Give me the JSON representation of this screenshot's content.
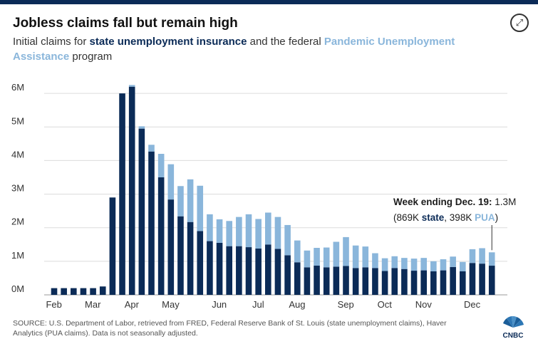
{
  "header": {
    "title": "Jobless claims fall but remain high",
    "subtitle_pre": "Initial claims for ",
    "subtitle_state": "state unemployment insurance",
    "subtitle_mid": " and the federal ",
    "subtitle_pua": "Pandemic Unemployment Assistance",
    "subtitle_post": " program"
  },
  "icons": {
    "expand": "expand-icon",
    "logo": "cnbc-peacock-logo"
  },
  "logo_text": "CNBC",
  "annotation": {
    "bold": "Week ending Dec. 19:",
    "value": " 1.3M",
    "open": "(869K ",
    "state": "state",
    "comma": ", 398K ",
    "pua": "PUA",
    "close": ")"
  },
  "source": "SOURCE: U.S. Department of Labor, retrieved from FRED, Federal Reserve Bank of St. Louis (state unemployment claims), Haver Analytics (PUA claims). Data is not seasonally adjusted.",
  "colors": {
    "state": "#0b2b57",
    "pua": "#8ab6db",
    "grid": "#dcdcdc",
    "topbar": "#0b2b57"
  },
  "chart_data": {
    "type": "bar",
    "stacked": true,
    "title": "Jobless claims fall but remain high",
    "ylabel": "",
    "ylim": [
      0,
      6.3
    ],
    "yticks": [
      0,
      1,
      2,
      3,
      4,
      5,
      6
    ],
    "ytick_labels": [
      "0M",
      "1M",
      "2M",
      "3M",
      "4M",
      "5M",
      "6M"
    ],
    "xtick_labels": [
      "Feb",
      "Mar",
      "Apr",
      "May",
      "Jun",
      "Jul",
      "Aug",
      "Sep",
      "Oct",
      "Nov",
      "Dec"
    ],
    "xtick_positions": [
      1,
      5,
      9,
      13,
      18,
      22,
      26,
      31,
      35,
      39,
      44
    ],
    "series": [
      {
        "name": "state unemployment insurance",
        "values": [
          0.2,
          0.2,
          0.2,
          0.2,
          0.2,
          0.25,
          2.9,
          6.0,
          6.2,
          4.95,
          4.27,
          3.5,
          2.84,
          2.34,
          2.17,
          1.9,
          1.6,
          1.55,
          1.45,
          1.45,
          1.42,
          1.38,
          1.5,
          1.37,
          1.18,
          0.97,
          0.82,
          0.87,
          0.82,
          0.84,
          0.86,
          0.8,
          0.82,
          0.8,
          0.71,
          0.8,
          0.77,
          0.72,
          0.73,
          0.7,
          0.73,
          0.83,
          0.7,
          0.95,
          0.93,
          0.869
        ]
      },
      {
        "name": "Pandemic Unemployment Assistance",
        "values": [
          0,
          0,
          0,
          0,
          0,
          0,
          0,
          0,
          0.05,
          0.07,
          0.2,
          0.7,
          1.05,
          0.9,
          1.27,
          1.35,
          0.8,
          0.7,
          0.75,
          0.87,
          0.98,
          0.88,
          0.95,
          0.95,
          0.9,
          0.65,
          0.5,
          0.53,
          0.59,
          0.74,
          0.86,
          0.67,
          0.62,
          0.44,
          0.38,
          0.35,
          0.33,
          0.36,
          0.37,
          0.3,
          0.33,
          0.31,
          0.28,
          0.41,
          0.46,
          0.398
        ]
      }
    ]
  }
}
